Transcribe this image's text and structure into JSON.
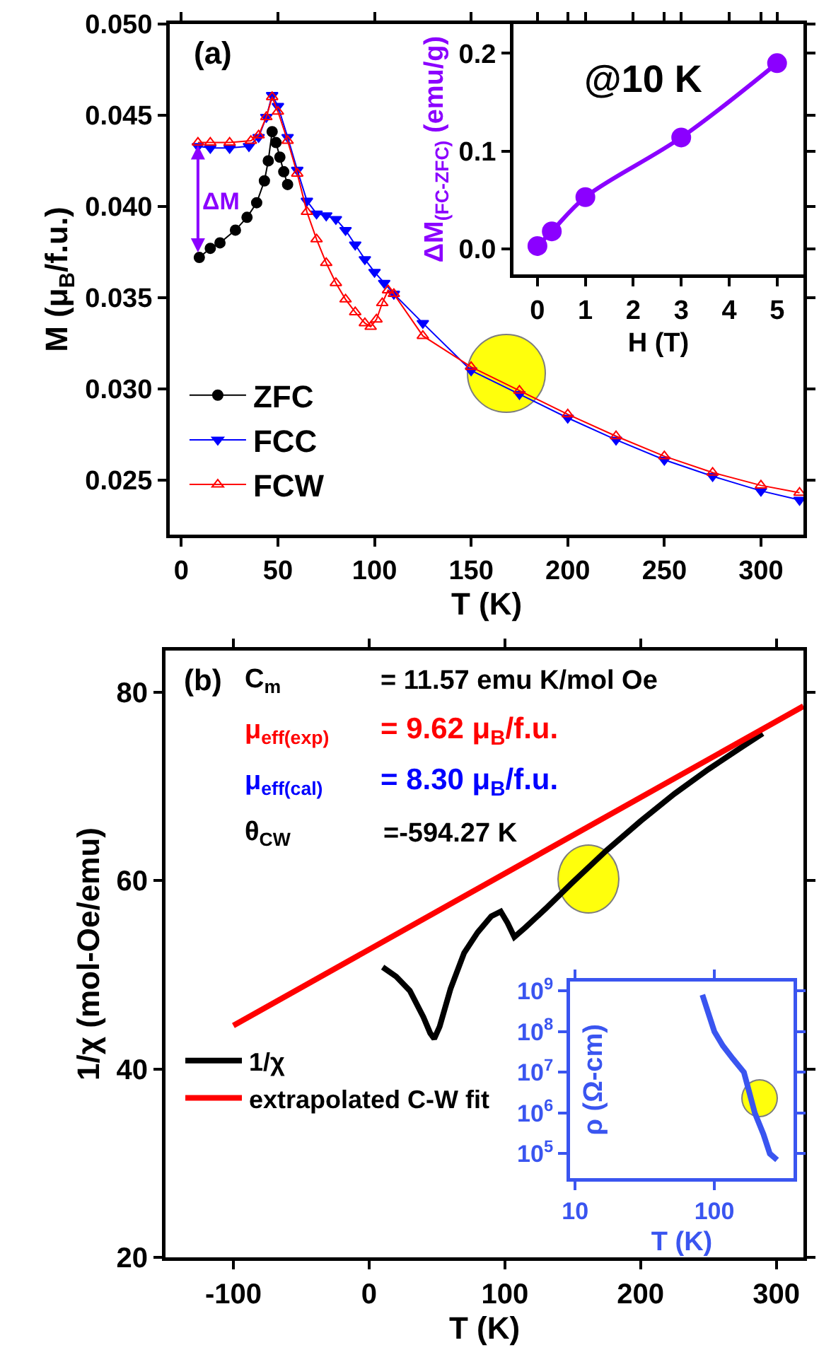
{
  "chart_data": [
    {
      "type": "line",
      "xlabel": "T (K)",
      "ylabel": "M (μ$_{B}$/f.u.)",
      "xlim": [
        -6,
        322
      ],
      "xticks": [
        0,
        50,
        100,
        150,
        200,
        250,
        300
      ],
      "ylim": [
        0.022,
        0.05
      ],
      "yticks": [
        0.025,
        {
          "value": 0.03,
          "label": "0.030"
        },
        0.035,
        {
          "value": 0.04,
          "label": "0.040"
        },
        0.045,
        {
          "value": 0.05,
          "label": "0.050"
        }
      ],
      "grid": false,
      "legend": "bottom left",
      "annotations": [
        "(a)",
        "ΔM"
      ],
      "series": [
        {
          "name": "ZFC",
          "color": "#000000",
          "marker": "circle",
          "x": [
            9.3,
            15,
            20,
            28,
            34,
            39,
            43,
            45,
            47,
            49,
            51,
            53,
            55
          ],
          "values": [
            0.0372,
            0.0377,
            0.038,
            0.0387,
            0.0394,
            0.0402,
            0.0414,
            0.0425,
            0.0441,
            0.0435,
            0.0427,
            0.0419,
            0.0412
          ]
        },
        {
          "name": "FCC",
          "color": "#0000ff",
          "marker": "triangle",
          "x": [
            8.6,
            15,
            25,
            35,
            40,
            44,
            47,
            50,
            55,
            60,
            65,
            70,
            75,
            80,
            85,
            90,
            95,
            100,
            105,
            110,
            125,
            150,
            175,
            200,
            225,
            250,
            275,
            300,
            320
          ],
          "values": [
            0.0433,
            0.0432,
            0.0432,
            0.0433,
            0.0438,
            0.0449,
            0.0461,
            0.0455,
            0.0438,
            0.042,
            0.0403,
            0.0396,
            0.0395,
            0.0393,
            0.0387,
            0.0379,
            0.0371,
            0.0364,
            0.0358,
            0.0352,
            0.0336,
            0.031,
            0.0297,
            0.0284,
            0.0272,
            0.0261,
            0.0252,
            0.0244,
            0.0239
          ]
        },
        {
          "name": "FCW",
          "color": "#ff0000",
          "marker": "triangle",
          "x": [
            8.6,
            15,
            25,
            36,
            40,
            44,
            47,
            50,
            55,
            60,
            65,
            70,
            75,
            80,
            85,
            90,
            95,
            98,
            101,
            104,
            107,
            110,
            125,
            150,
            175,
            200,
            225,
            250,
            275,
            300,
            320
          ],
          "values": [
            0.0435,
            0.0435,
            0.0435,
            0.0436,
            0.0439,
            0.0449,
            0.046,
            0.0452,
            0.0436,
            0.0418,
            0.0397,
            0.0382,
            0.0369,
            0.0358,
            0.0349,
            0.0342,
            0.0336,
            0.0334,
            0.0338,
            0.0347,
            0.0354,
            0.0352,
            0.0329,
            0.0312,
            0.0299,
            0.0286,
            0.0274,
            0.0263,
            0.0254,
            0.0247,
            0.0243
          ]
        }
      ]
    },
    {
      "type": "line",
      "xlabel": "H (T)",
      "ylabel": "ΔM$_{(FC-ZFC)}$ (emu/g)",
      "xlim": [
        -0.5,
        5.55
      ],
      "xticks": [
        0,
        1,
        2,
        3,
        4,
        5
      ],
      "ylim": [
        -0.026,
        0.23
      ],
      "yticks": [
        {
          "value": 0,
          "label": "0.0"
        },
        0.1,
        0.2
      ],
      "grid": false,
      "marker": "circle",
      "annotations": [
        "@10 K"
      ],
      "series": [
        {
          "color": "#8b00ff",
          "x": [
            0,
            0.3,
            1,
            3,
            5
          ],
          "values": [
            0.003,
            0.018,
            0.053,
            0.114,
            0.19
          ]
        }
      ]
    },
    {
      "type": "line",
      "xlabel": "T (K)",
      "ylabel": "1/χ (mol-Oe/emu)",
      "xlim": [
        -150,
        320
      ],
      "xticks": [
        -100,
        0,
        100,
        200,
        300
      ],
      "ylim": [
        20,
        84.4
      ],
      "yticks": [
        20,
        40,
        60,
        80
      ],
      "grid": false,
      "legend": "bottom left",
      "marker": "none",
      "annotations": [
        "(b)",
        "C$_{m}$",
        "= 11.57 emu K/mol Oe",
        "μ$_{eff(exp)}$",
        "= 9.62 μ$_{B}$/f.u.",
        "μ$_{eff(cal)}$",
        "= 8.30 μ$_{B}$/f.u.",
        "θ$_{CW}$",
        "=-594.27 K"
      ],
      "series": [
        {
          "name": "1/χ",
          "color": "#000000",
          "x": [
            10,
            20,
            30,
            40,
            45,
            48,
            52,
            60,
            70,
            80,
            90,
            97,
            102,
            107,
            115,
            130,
            150,
            175,
            200,
            225,
            250,
            275,
            290
          ],
          "values": [
            50.8,
            49.8,
            48.3,
            45.5,
            43.8,
            43.2,
            44.5,
            48.5,
            52.3,
            54.5,
            56.2,
            56.7,
            55.5,
            54,
            55,
            57,
            59.8,
            63.2,
            66.3,
            69.2,
            71.8,
            74.2,
            75.6
          ]
        },
        {
          "name": "extrapolated C-W fit",
          "color": "#ff0000",
          "x": [
            -100,
            320
          ],
          "values": [
            44.6,
            78.5
          ]
        }
      ]
    },
    {
      "type": "line",
      "xlabel": "T (K)",
      "ylabel": "ρ (Ω-cm)",
      "log": "xy",
      "xlim": [
        9.2,
        370
      ],
      "xticks": [
        10,
        100
      ],
      "ylim": [
        25000,
        1700000000
      ],
      "yticks": [
        {
          "value": 100000,
          "label": "10$^{5}$"
        },
        {
          "value": 1000000,
          "label": "10$^{6}$"
        },
        {
          "value": 10000000,
          "label": "10$^{7}$"
        },
        {
          "value": 100000000,
          "label": "10$^{8}$"
        },
        {
          "value": 1000000000,
          "label": "10$^{9}$"
        }
      ],
      "grid": false,
      "marker": "none",
      "series": [
        {
          "color": "#3a55f0",
          "x": [
            82,
            90,
            100,
            115,
            135,
            163,
            195,
            225,
            250,
            282
          ],
          "values": [
            800000000,
            300000000,
            100000000,
            45000000,
            22000000,
            10000000,
            1000000,
            300000,
            100000,
            70000
          ]
        }
      ]
    }
  ]
}
